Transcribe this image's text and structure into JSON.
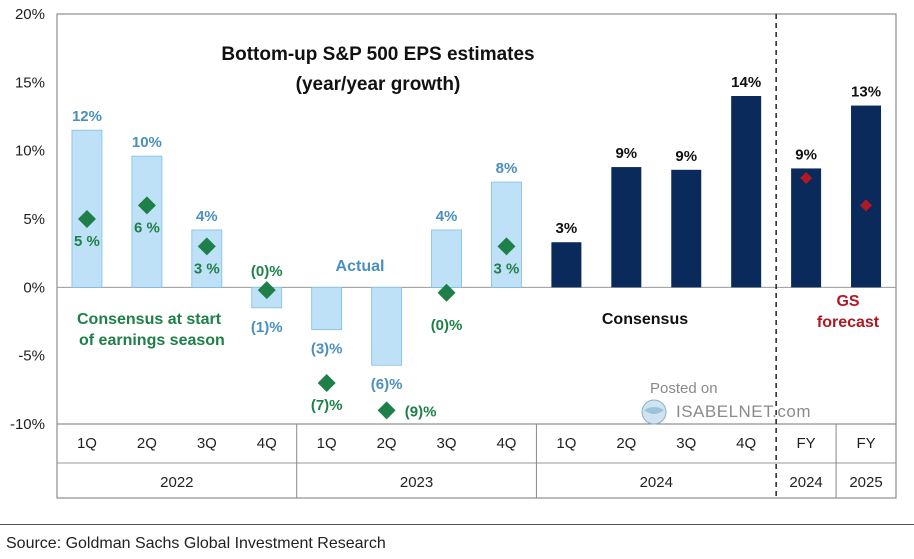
{
  "chart_data": {
    "type": "bar",
    "title_line1": "Bottom-up S&P 500 EPS estimates",
    "title_line2": "(year/year growth)",
    "ylim": [
      -10,
      20
    ],
    "y_ticks": [
      -10,
      -5,
      0,
      5,
      10,
      15,
      20
    ],
    "y_tick_labels": [
      "-10%",
      "-5%",
      "0%",
      "5%",
      "10%",
      "15%",
      "20%"
    ],
    "categories": [
      "1Q",
      "2Q",
      "3Q",
      "4Q",
      "1Q",
      "2Q",
      "3Q",
      "4Q",
      "1Q",
      "2Q",
      "3Q",
      "4Q",
      "FY",
      "FY"
    ],
    "groups": [
      {
        "label": "2022",
        "start": 0,
        "end": 3
      },
      {
        "label": "2023",
        "start": 4,
        "end": 7
      },
      {
        "label": "2024",
        "start": 8,
        "end": 11
      },
      {
        "label": "2024",
        "start": 12,
        "end": 12
      },
      {
        "label": "2025",
        "start": 13,
        "end": 13
      }
    ],
    "actual_series": {
      "name": "Actual",
      "values": [
        11.5,
        9.6,
        4.2,
        -1.5,
        -3.1,
        -5.7,
        4.2,
        7.7
      ],
      "labels": [
        "12%",
        "10%",
        "4%",
        "(1)%",
        "(3)%",
        "(6)%",
        "4%",
        "8%"
      ],
      "color": "#bfe1f7"
    },
    "consensus_start_series": {
      "name": "Consensus at start of earnings season",
      "values": [
        5,
        6,
        3,
        -0.2,
        -7,
        -9,
        -0.4,
        3
      ],
      "labels": [
        "5 %",
        "6 %",
        "3 %",
        "(0)%",
        "(7)%",
        "(9)%",
        "(0)%",
        "3 %"
      ],
      "color": "#1e8048"
    },
    "consensus_series": {
      "name": "Consensus",
      "values": [
        3.3,
        8.8,
        8.6,
        14.0,
        8.7,
        13.3
      ],
      "labels": [
        "3%",
        "9%",
        "9%",
        "14%",
        "9%",
        "13%"
      ],
      "color": "#0a2a5c"
    },
    "gs_forecast_series": {
      "name": "GS forecast",
      "values": [
        8.0,
        6.0
      ],
      "color": "#b01822"
    },
    "annotations": {
      "actual": "Actual",
      "consensus_start_line1": "Consensus at start",
      "consensus_start_line2": "of earnings season",
      "consensus": "Consensus",
      "gs_line1": "GS",
      "gs_line2": "forecast"
    }
  },
  "source": "Source: Goldman Sachs Global Investment Research",
  "watermark": {
    "posted": "Posted on",
    "brand": "ISABELNET.com"
  },
  "colors": {
    "actual_label": "#4a8fc0",
    "green": "#1e8048",
    "navy": "#0a2a5c",
    "red": "#b01822"
  }
}
